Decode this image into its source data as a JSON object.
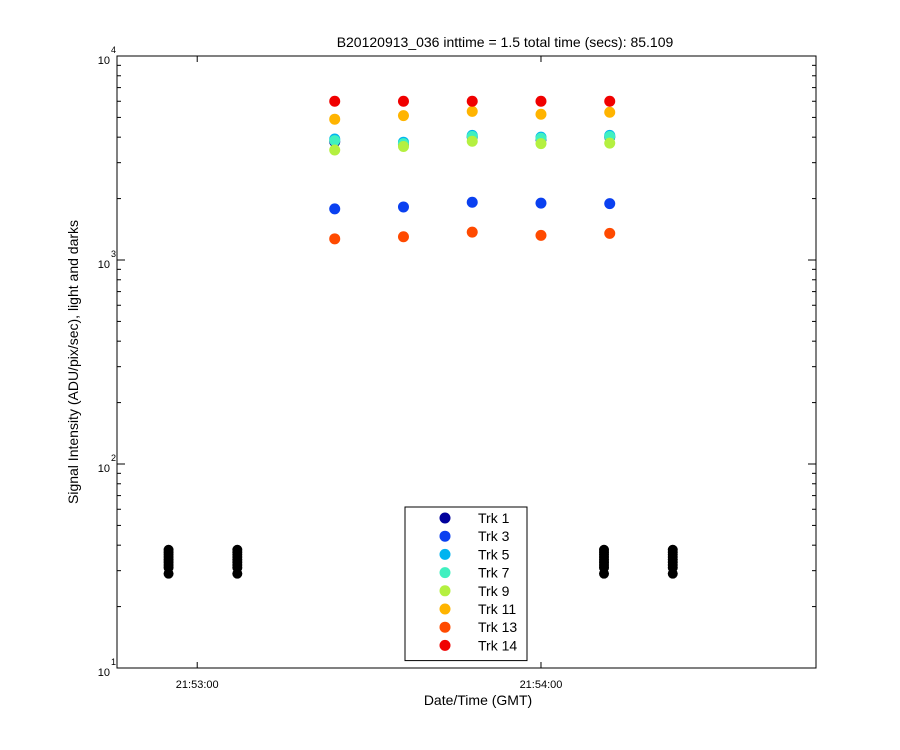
{
  "chart_data": {
    "type": "scatter",
    "title": "B20120913_036 inttime = 1.5 total time (secs): 85.109",
    "xlabel": "Date/Time (GMT)",
    "ylabel": "Signal Intensity (ADU/pix/sec), light and darks",
    "yscale": "log",
    "xlim": [
      "21:52:46",
      "21:54:48"
    ],
    "ylim": [
      10,
      10000
    ],
    "xticks": [
      "21:53:00",
      "21:54:00"
    ],
    "yticks": [
      {
        "value": 10,
        "base": "10",
        "exp": "1"
      },
      {
        "value": 100,
        "base": "10",
        "exp": "2"
      },
      {
        "value": 1000,
        "base": "10",
        "exp": "3"
      },
      {
        "value": 10000,
        "base": "10",
        "exp": "4"
      }
    ],
    "light_times": [
      "21:53:24",
      "21:53:36",
      "21:53:48",
      "21:54:00",
      "21:54:12"
    ],
    "dark_times": [
      "21:52:55",
      "21:53:07",
      "21:54:11",
      "21:54:23"
    ],
    "legend_position": "bottom-center",
    "series": [
      {
        "name": "Trk 1",
        "color": "#00009c",
        "values": [
          3800,
          3700,
          4000,
          3900,
          4000
        ]
      },
      {
        "name": "Trk 3",
        "color": "#0a40f0",
        "values": [
          1780,
          1820,
          1920,
          1900,
          1890
        ]
      },
      {
        "name": "Trk 5",
        "color": "#00b4f0",
        "values": [
          3920,
          3780,
          4080,
          4000,
          4080
        ]
      },
      {
        "name": "Trk 7",
        "color": "#40f0c0",
        "values": [
          3850,
          3720,
          4030,
          3950,
          4030
        ]
      },
      {
        "name": "Trk 9",
        "color": "#b4f040",
        "values": [
          3460,
          3600,
          3820,
          3720,
          3740
        ]
      },
      {
        "name": "Trk 11",
        "color": "#ffb400",
        "values": [
          4900,
          5100,
          5350,
          5180,
          5300
        ]
      },
      {
        "name": "Trk 13",
        "color": "#ff4a00",
        "values": [
          1270,
          1300,
          1370,
          1320,
          1350
        ]
      },
      {
        "name": "Trk 14",
        "color": "#f00000",
        "values": [
          6000,
          6000,
          6000,
          6000,
          6000
        ]
      }
    ],
    "darks": {
      "color": "#000000",
      "values": [
        29,
        31,
        32,
        33,
        34,
        35,
        36,
        37,
        38
      ]
    }
  }
}
